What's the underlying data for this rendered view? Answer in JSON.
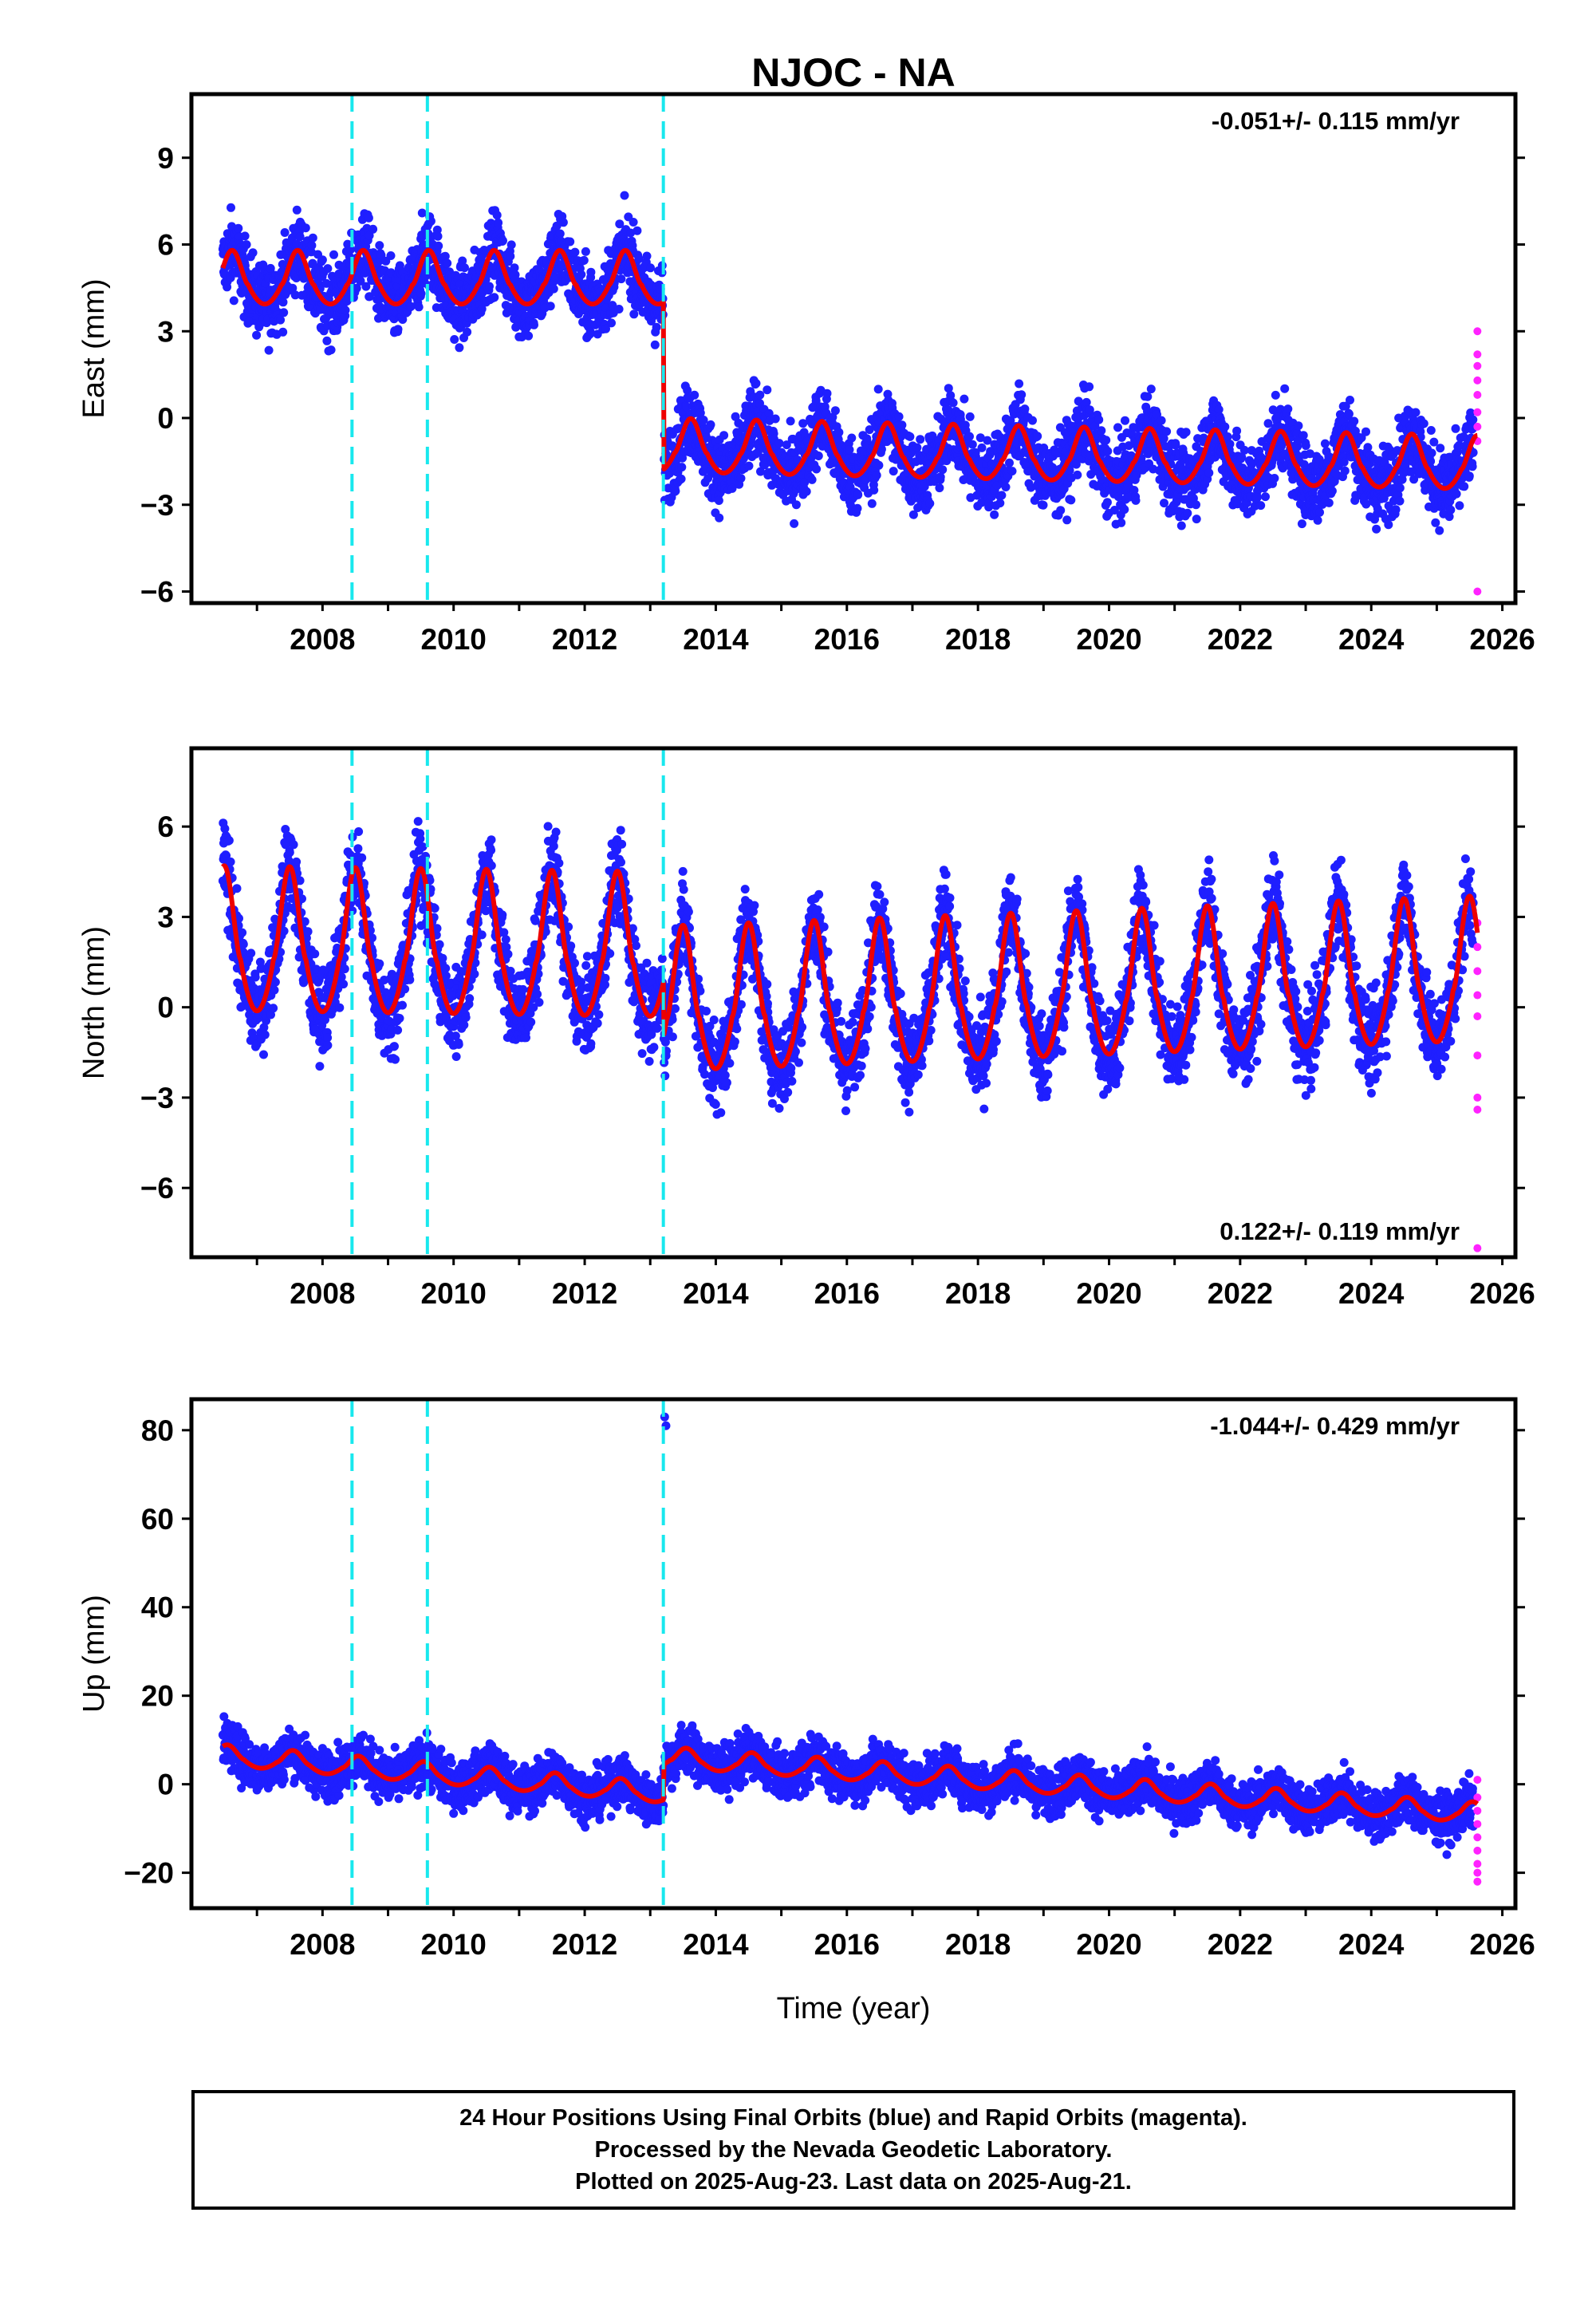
{
  "chart_data": [
    {
      "type": "scatter",
      "title": "NJOC - NA",
      "ylabel": "East (mm)",
      "xlabel": "",
      "xlim": [
        2006.0,
        2026.2
      ],
      "ylim": [
        -6.4,
        11.2
      ],
      "xticks": [
        2008,
        2010,
        2012,
        2014,
        2016,
        2018,
        2020,
        2022,
        2024,
        2026
      ],
      "yticks": [
        -6,
        -3,
        0,
        3,
        6,
        9
      ],
      "ytick_labels": [
        "−6",
        "−3",
        "0",
        "3",
        "6",
        "9"
      ],
      "rate_annotation": "-0.051+/- 0.115 mm/yr",
      "rate_position": "top-right",
      "steps": [
        2008.45,
        2009.6,
        2013.2
      ],
      "series": [
        {
          "role": "final orbits",
          "color": "#1f1fff",
          "t0": 2006.48,
          "t1": 2025.56,
          "model_mean": [
            [
              2006.48,
              4.6
            ],
            [
              2013.2,
              4.6
            ],
            [
              2013.21,
              -1.2
            ],
            [
              2025.6,
              -1.8
            ]
          ],
          "annual_amplitude": 1.2,
          "annual_peak_phase": 0.62,
          "scatter": 1.1
        },
        {
          "role": "rapid orbits",
          "color": "#ff22ff",
          "x": 2025.62,
          "values": [
            3.0,
            2.2,
            1.8,
            1.3,
            0.8,
            0.2,
            -0.3,
            -0.8,
            -6.0
          ]
        }
      ],
      "model_color": "#ee0000"
    },
    {
      "type": "scatter",
      "title": "",
      "ylabel": "North (mm)",
      "xlabel": "",
      "xlim": [
        2006.0,
        2026.2
      ],
      "ylim": [
        -8.3,
        8.6
      ],
      "xticks": [
        2008,
        2010,
        2012,
        2014,
        2016,
        2018,
        2020,
        2022,
        2024,
        2026
      ],
      "yticks": [
        -6,
        -3,
        0,
        3,
        6
      ],
      "ytick_labels": [
        "−6",
        "−3",
        "0",
        "3",
        "6"
      ],
      "rate_annotation": "0.122+/- 0.119 mm/yr",
      "rate_position": "bottom-right",
      "steps": [
        2008.45,
        2009.6,
        2013.2
      ],
      "series": [
        {
          "role": "final orbits",
          "color": "#1f1fff",
          "t0": 2006.48,
          "t1": 2025.56,
          "model_mean": [
            [
              2006.48,
              1.6
            ],
            [
              2013.2,
              1.4
            ],
            [
              2013.21,
              -0.4
            ],
            [
              2025.6,
              0.6
            ]
          ],
          "annual_amplitude": 3.1,
          "annual_peak_phase": 0.5,
          "scatter": 1.2
        },
        {
          "role": "rapid orbits",
          "color": "#ff22ff",
          "x": 2025.62,
          "values": [
            2.8,
            2.0,
            1.2,
            0.4,
            -0.3,
            -1.6,
            -3.0,
            -3.4,
            -8.0
          ]
        }
      ],
      "model_color": "#ee0000"
    },
    {
      "type": "scatter",
      "title": "",
      "ylabel": "Up (mm)",
      "xlabel": "Time (year)",
      "xlim": [
        2006.0,
        2026.2
      ],
      "ylim": [
        -28,
        87
      ],
      "xticks": [
        2008,
        2010,
        2012,
        2014,
        2016,
        2018,
        2020,
        2022,
        2024,
        2026
      ],
      "yticks": [
        -20,
        0,
        20,
        40,
        60,
        80
      ],
      "ytick_labels": [
        "−20",
        "0",
        "20",
        "40",
        "60",
        "80"
      ],
      "rate_annotation": "-1.044+/- 0.429 mm/yr",
      "rate_position": "top-right",
      "steps": [
        2008.45,
        2009.6,
        2013.2
      ],
      "outliers": [
        [
          2013.22,
          83
        ],
        [
          2013.24,
          81
        ]
      ],
      "series": [
        {
          "role": "final orbits",
          "color": "#1f1fff",
          "t0": 2006.48,
          "t1": 2025.56,
          "model_mean": [
            [
              2006.48,
              6.0
            ],
            [
              2013.2,
              -2.5
            ],
            [
              2013.21,
              5.5
            ],
            [
              2025.6,
              -7.0
            ]
          ],
          "annual_amplitude": 3.0,
          "annual_peak_phase": 0.55,
          "scatter": 4.5
        },
        {
          "role": "rapid orbits",
          "color": "#ff22ff",
          "x": 2025.62,
          "values": [
            1.0,
            -3.0,
            -6.0,
            -9.0,
            -12.0,
            -15.0,
            -18.0,
            -20.0,
            -22.0
          ]
        }
      ],
      "model_color": "#ee0000"
    }
  ],
  "caption": {
    "line1": "24 Hour Positions Using Final Orbits (blue) and Rapid Orbits (magenta).",
    "line2": "Processed by the Nevada Geodetic Laboratory.",
    "line3": "Plotted on 2025-Aug-23. Last data on 2025-Aug-21."
  }
}
